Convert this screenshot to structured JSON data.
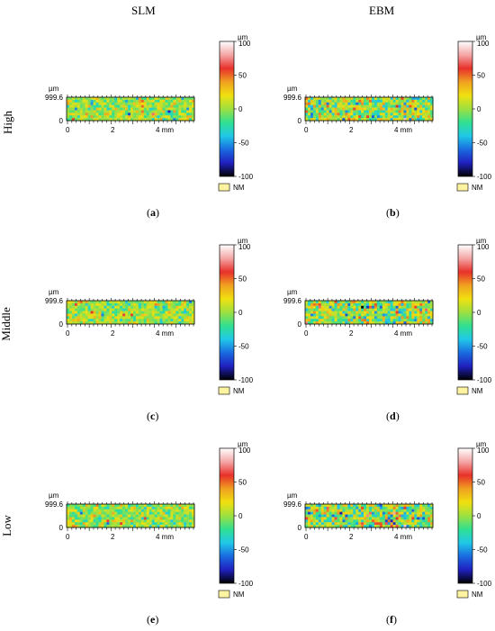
{
  "columns": {
    "slm": "SLM",
    "ebm": "EBM"
  },
  "rows": {
    "high": "High",
    "middle": "Middle",
    "low": "Low"
  },
  "axis": {
    "unit": "µm",
    "y_top": "999.6",
    "y_zero": "0",
    "x_ticks": [
      "0",
      "2",
      "4 mm"
    ]
  },
  "colorbar": {
    "unit": "µm",
    "ticks": [
      "100",
      "50",
      "0",
      "-50",
      "-100"
    ],
    "nm_label": "NM",
    "stops": [
      "#ffffff",
      "#f4a6a6",
      "#e8302a",
      "#f0a020",
      "#f0e010",
      "#9ee040",
      "#30e090",
      "#20c8e8",
      "#1a6be0",
      "#2020c0",
      "#000000"
    ]
  },
  "panels": [
    {
      "id": "a",
      "caption": "a",
      "seed": 11,
      "rough": 0.9
    },
    {
      "id": "b",
      "caption": "b",
      "seed": 23,
      "rough": 1.4
    },
    {
      "id": "c",
      "caption": "c",
      "seed": 37,
      "rough": 0.9
    },
    {
      "id": "d",
      "caption": "d",
      "seed": 41,
      "rough": 1.4
    },
    {
      "id": "e",
      "caption": "e",
      "seed": 53,
      "rough": 0.9
    },
    {
      "id": "f",
      "caption": "f",
      "seed": 67,
      "rough": 1.5
    }
  ]
}
